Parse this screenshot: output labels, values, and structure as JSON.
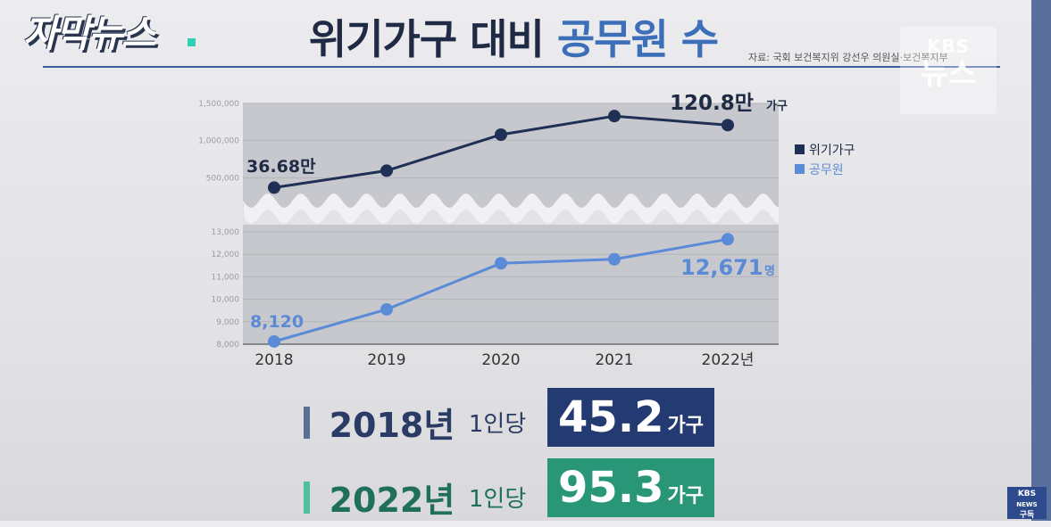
{
  "header": {
    "logo": "자막뉴스",
    "title_main": "위기가구 대비",
    "title_highlight": "공무원 수",
    "source": "자료: 국회 보건복지위 강선우 의원실·보건복지부",
    "watermark_top": "KBS",
    "watermark_bottom": "뉴스"
  },
  "chart_data": {
    "type": "line",
    "categories": [
      "2018",
      "2019",
      "2020",
      "2021",
      "2022년"
    ],
    "series": [
      {
        "name": "위기가구",
        "color": "#1f2f55",
        "values": [
          366800,
          595000,
          1080000,
          1330000,
          1208000
        ],
        "ylim": [
          0,
          1500000
        ],
        "ticks": [
          "500,000",
          "1,000,000",
          "1,500,000"
        ],
        "tick_values": [
          500000,
          1000000,
          1500000
        ],
        "start_label": "36.68만",
        "end_label": "120.8만",
        "end_unit": "가구"
      },
      {
        "name": "공무원",
        "color": "#5b8ad6",
        "values": [
          8120,
          9550,
          11600,
          11780,
          12671
        ],
        "ylim": [
          8000,
          13000
        ],
        "ticks": [
          "8,000",
          "9,000",
          "10,000",
          "11,000",
          "12,000",
          "13,000"
        ],
        "tick_values": [
          8000,
          9000,
          10000,
          11000,
          12000,
          13000
        ],
        "start_label": "8,120",
        "end_label": "12,671",
        "end_unit": "명"
      }
    ],
    "axis_break": true,
    "legend_position": "right"
  },
  "stats": [
    {
      "year": "2018년",
      "per": "1인당",
      "value": "45.2",
      "unit": "가구",
      "bar_color": "#5a6f95",
      "text_color": "#2a3b66",
      "box_color": "#233a73"
    },
    {
      "year": "2022년",
      "per": "1인당",
      "value": "95.3",
      "unit": "가구",
      "bar_color": "#4fc1a3",
      "text_color": "#1f6f5c",
      "box_color": "#2a9678"
    }
  ],
  "corner": {
    "line1": "KBS",
    "line2": "NEWS",
    "line3": "구독"
  }
}
